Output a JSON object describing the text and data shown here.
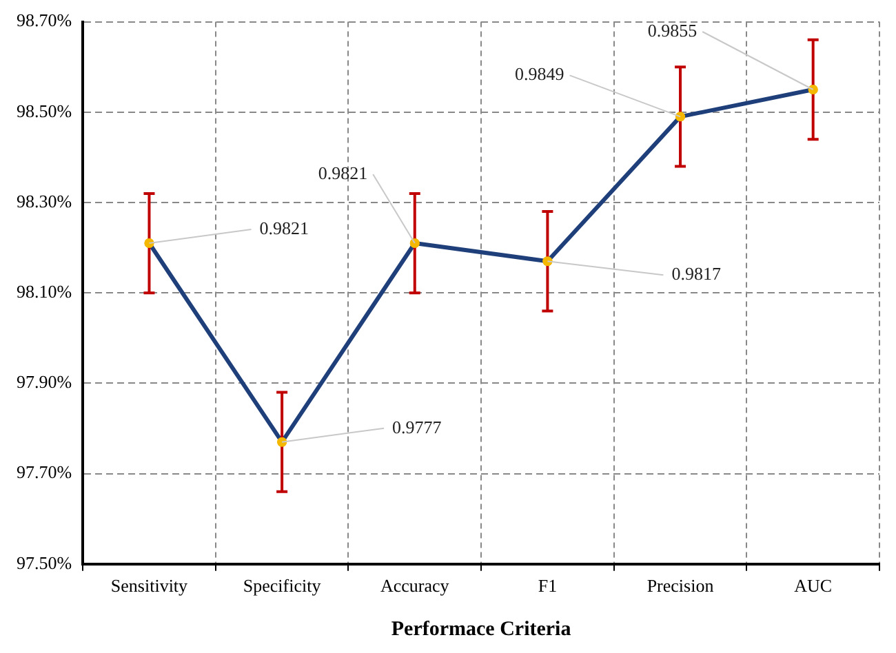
{
  "chart_data": {
    "type": "line",
    "xlabel": "Performace Criteria",
    "categories": [
      "Sensitivity",
      "Specificity",
      "Accuracy",
      "F1",
      "Precision",
      "AUC"
    ],
    "series": [
      {
        "color": "#1f3f7a",
        "values": [
          0.9821,
          0.9777,
          0.9821,
          0.9817,
          0.9849,
          0.9855
        ],
        "errors": [
          0.0011,
          0.0011,
          0.0011,
          0.0011,
          0.0011,
          0.0011
        ]
      }
    ],
    "ylim": [
      0.975,
      0.987
    ],
    "yticks": [
      {
        "value": 0.975,
        "label": "97.50%"
      },
      {
        "value": 0.977,
        "label": "97.70%"
      },
      {
        "value": 0.979,
        "label": "97.90%"
      },
      {
        "value": 0.981,
        "label": "98.10%"
      },
      {
        "value": 0.983,
        "label": "98.30%"
      },
      {
        "value": 0.985,
        "label": "98.50%"
      },
      {
        "value": 0.987,
        "label": "98.70%"
      }
    ],
    "annotations": [
      {
        "text": "0.9821",
        "x": "Sensitivity",
        "y": 0.9821
      },
      {
        "text": "0.9777",
        "x": "Specificity",
        "y": 0.9777
      },
      {
        "text": "0.9821",
        "x": "Accuracy",
        "y": 0.9821
      },
      {
        "text": "0.9817",
        "x": "F1",
        "y": 0.9817
      },
      {
        "text": "0.9849",
        "x": "Precision",
        "y": 0.9849
      },
      {
        "text": "0.9855",
        "x": "AUC",
        "y": 0.9855
      }
    ],
    "grid": true,
    "marker": "circle",
    "line_style": "solid",
    "legend": false
  }
}
